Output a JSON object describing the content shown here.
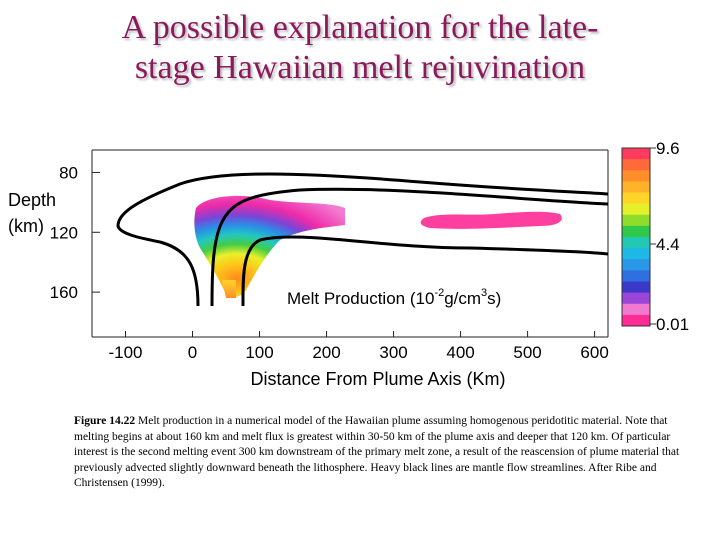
{
  "slide": {
    "title_line1": "A possible explanation for the late-",
    "title_line2": "stage Hawaiian melt rejuvination"
  },
  "chart_data": {
    "type": "heatmap",
    "title": "Melt Production (10⁻²g/cm³s)",
    "title_parts": [
      "Melt Production (10",
      "-2",
      "g/cm",
      "3",
      "s)"
    ],
    "xlabel": "Distance From Plume Axis (Km)",
    "ylabel_line1": "Depth",
    "ylabel_line2": "(km)",
    "xlim": [
      -150,
      620
    ],
    "ylim": [
      65,
      190
    ],
    "x_ticks": [
      -100,
      0,
      100,
      200,
      300,
      400,
      500,
      600
    ],
    "x_tick_labels": [
      "-100",
      "0",
      "100",
      "200",
      "300",
      "400",
      "500",
      "600"
    ],
    "y_ticks": [
      80,
      120,
      160
    ],
    "y_tick_labels": [
      "80",
      "120",
      "160"
    ],
    "colorbar": {
      "labels": [
        "9.6",
        "4.4",
        "0.01"
      ],
      "values": [
        9.6,
        4.4,
        0.01
      ],
      "colors": [
        "#ff2c96",
        "#f07ad0",
        "#9b45d9",
        "#3b39c9",
        "#2f6fe0",
        "#2a98e6",
        "#1fb7e6",
        "#22c8b4",
        "#2fc84a",
        "#8fdc2a",
        "#e3f02a",
        "#ffd52a",
        "#ffb22a",
        "#ff8e2a",
        "#ff6a3a",
        "#ff3b5f"
      ]
    },
    "melt_regions": [
      {
        "name": "primary melt zone",
        "x_range": [
          -30,
          200
        ],
        "depth_range": [
          80,
          160
        ],
        "peak_value": 9.6
      },
      {
        "name": "second melting event",
        "x_range": [
          330,
          590
        ],
        "depth_range": [
          98,
          108
        ],
        "peak_value": 1.0
      }
    ],
    "annotations": []
  },
  "caption": {
    "label": "Figure 14.22",
    "text": " Melt production in a numerical model of the Hawaiian plume assuming homogenous peridotitic material. Note that melting begins at about 160 km and melt flux is greatest within 30-50 km of the plume axis and deeper that 120 km. Of particular interest is the second melting event 300 km downstream of the primary melt zone, a result of the reascension of plume material that previously advected slightly downward beneath the lithosphere. Heavy black lines are mantle flow streamlines. After Ribe and Christensen (1999)."
  }
}
